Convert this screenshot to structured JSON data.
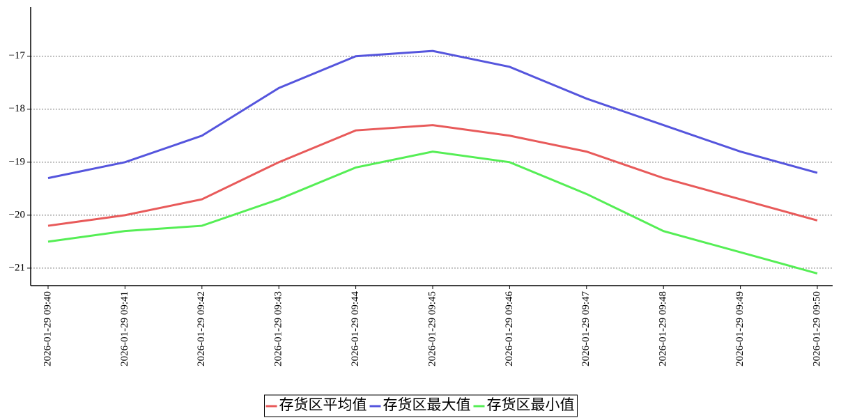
{
  "chart_data": {
    "type": "line",
    "categories": [
      "2026-01-29 09:40",
      "2026-01-29 09:41",
      "2026-01-29 09:42",
      "2026-01-29 09:43",
      "2026-01-29 09:44",
      "2026-01-29 09:45",
      "2026-01-29 09:46",
      "2026-01-29 09:47",
      "2026-01-29 09:48",
      "2026-01-29 09:49",
      "2026-01-29 09:50"
    ],
    "series": [
      {
        "name": "存货区平均值",
        "color": "#e85a5a",
        "values": [
          -20.2,
          -20.0,
          -19.7,
          -19.0,
          -18.4,
          -18.3,
          -18.5,
          -18.8,
          -19.3,
          -19.7,
          -20.1
        ]
      },
      {
        "name": "存货区最大值",
        "color": "#5555dd",
        "values": [
          -19.3,
          -19.0,
          -18.5,
          -17.6,
          -17.0,
          -16.9,
          -17.2,
          -17.8,
          -18.3,
          -18.8,
          -19.2
        ]
      },
      {
        "name": "存货区最小值",
        "color": "#55ee55",
        "values": [
          -20.5,
          -20.3,
          -20.2,
          -19.7,
          -19.1,
          -18.8,
          -19.0,
          -19.6,
          -20.3,
          -20.7,
          -21.1
        ]
      }
    ],
    "ylim": [
      -21.33,
      -16.07
    ],
    "yticks": [
      {
        "value": -17,
        "label": "−17"
      },
      {
        "value": -18,
        "label": "−18"
      },
      {
        "value": -19,
        "label": "−19"
      },
      {
        "value": -20,
        "label": "−20"
      },
      {
        "value": -21,
        "label": "−21"
      }
    ],
    "grid": true,
    "legend": "bottom"
  }
}
